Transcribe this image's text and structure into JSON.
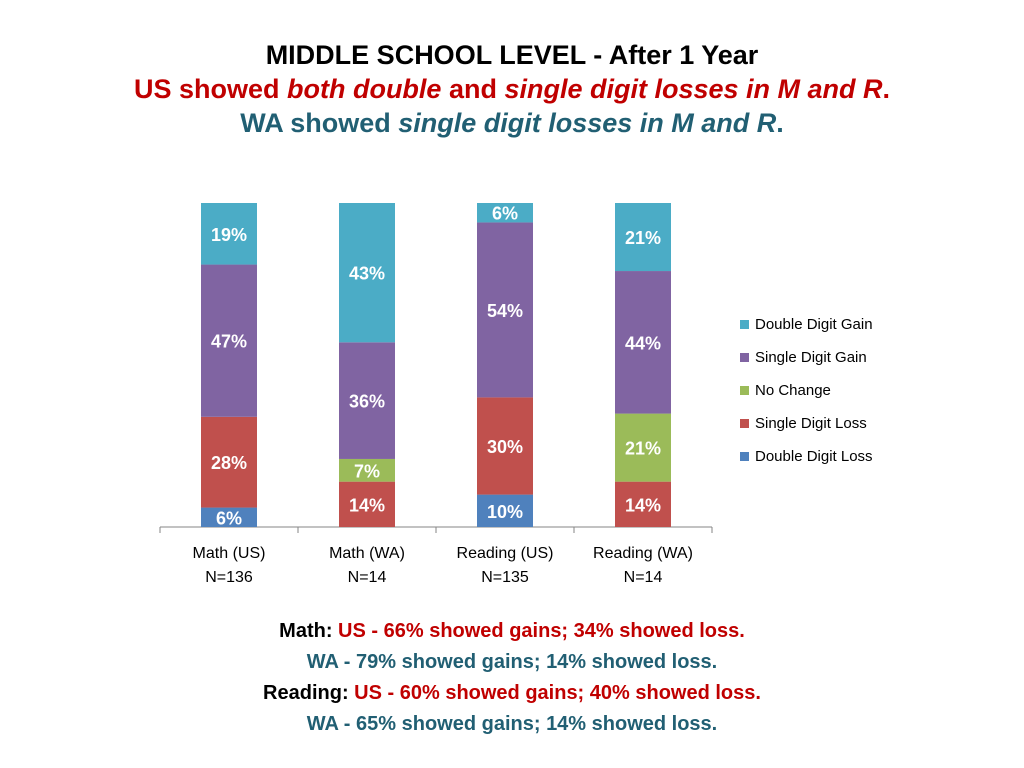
{
  "title": {
    "line1": "MIDDLE SCHOOL LEVEL - After 1 Year",
    "line2": {
      "a": "US showed ",
      "b": "both double",
      "c": " and ",
      "d": "single digit losses in M and R",
      "e": "."
    },
    "line3": {
      "a": "WA showed ",
      "b": "single digit losses in M and R",
      "c": "."
    }
  },
  "chart_data": {
    "type": "bar",
    "stacked": true,
    "percent": true,
    "categories": [
      "Math (US)|N=136",
      "Math  (WA)|N=14",
      "Reading (US)|N=135",
      "Reading (WA)|N=14"
    ],
    "series": [
      {
        "name": "Double Digit Loss",
        "color": "#4f81bd",
        "values": [
          6,
          0,
          10,
          0
        ],
        "labels": [
          "6%",
          "",
          "10%",
          ""
        ]
      },
      {
        "name": "Single Digit Loss",
        "color": "#c0504d",
        "values": [
          28,
          14,
          30,
          14
        ],
        "labels": [
          "28%",
          "14%",
          "30%",
          "14%"
        ]
      },
      {
        "name": "No Change",
        "color": "#9bbb59",
        "values": [
          0,
          7,
          0,
          21
        ],
        "labels": [
          "",
          "7%",
          "",
          "21%"
        ]
      },
      {
        "name": "Single Digit Gain",
        "color": "#8064a2",
        "values": [
          47,
          36,
          54,
          44
        ],
        "labels": [
          "47%",
          "36%",
          "54%",
          "44%"
        ]
      },
      {
        "name": "Double Digit Gain",
        "color": "#4bacc6",
        "values": [
          19,
          43,
          6,
          21
        ],
        "labels": [
          "19%",
          "43%",
          "6%",
          "21%"
        ]
      }
    ],
    "ylim": [
      0,
      100
    ],
    "grid": false,
    "legend": "right"
  },
  "summary": {
    "line1": {
      "label": "Math: ",
      "text": "US - 66% showed gains; 34% showed loss."
    },
    "line2": {
      "text": "WA - 79% showed gains; 14% showed loss."
    },
    "line3": {
      "label": "Reading: ",
      "text": "US - 60% showed gains; 40% showed loss."
    },
    "line4": {
      "text": "WA - 65% showed gains; 14% showed loss."
    }
  }
}
